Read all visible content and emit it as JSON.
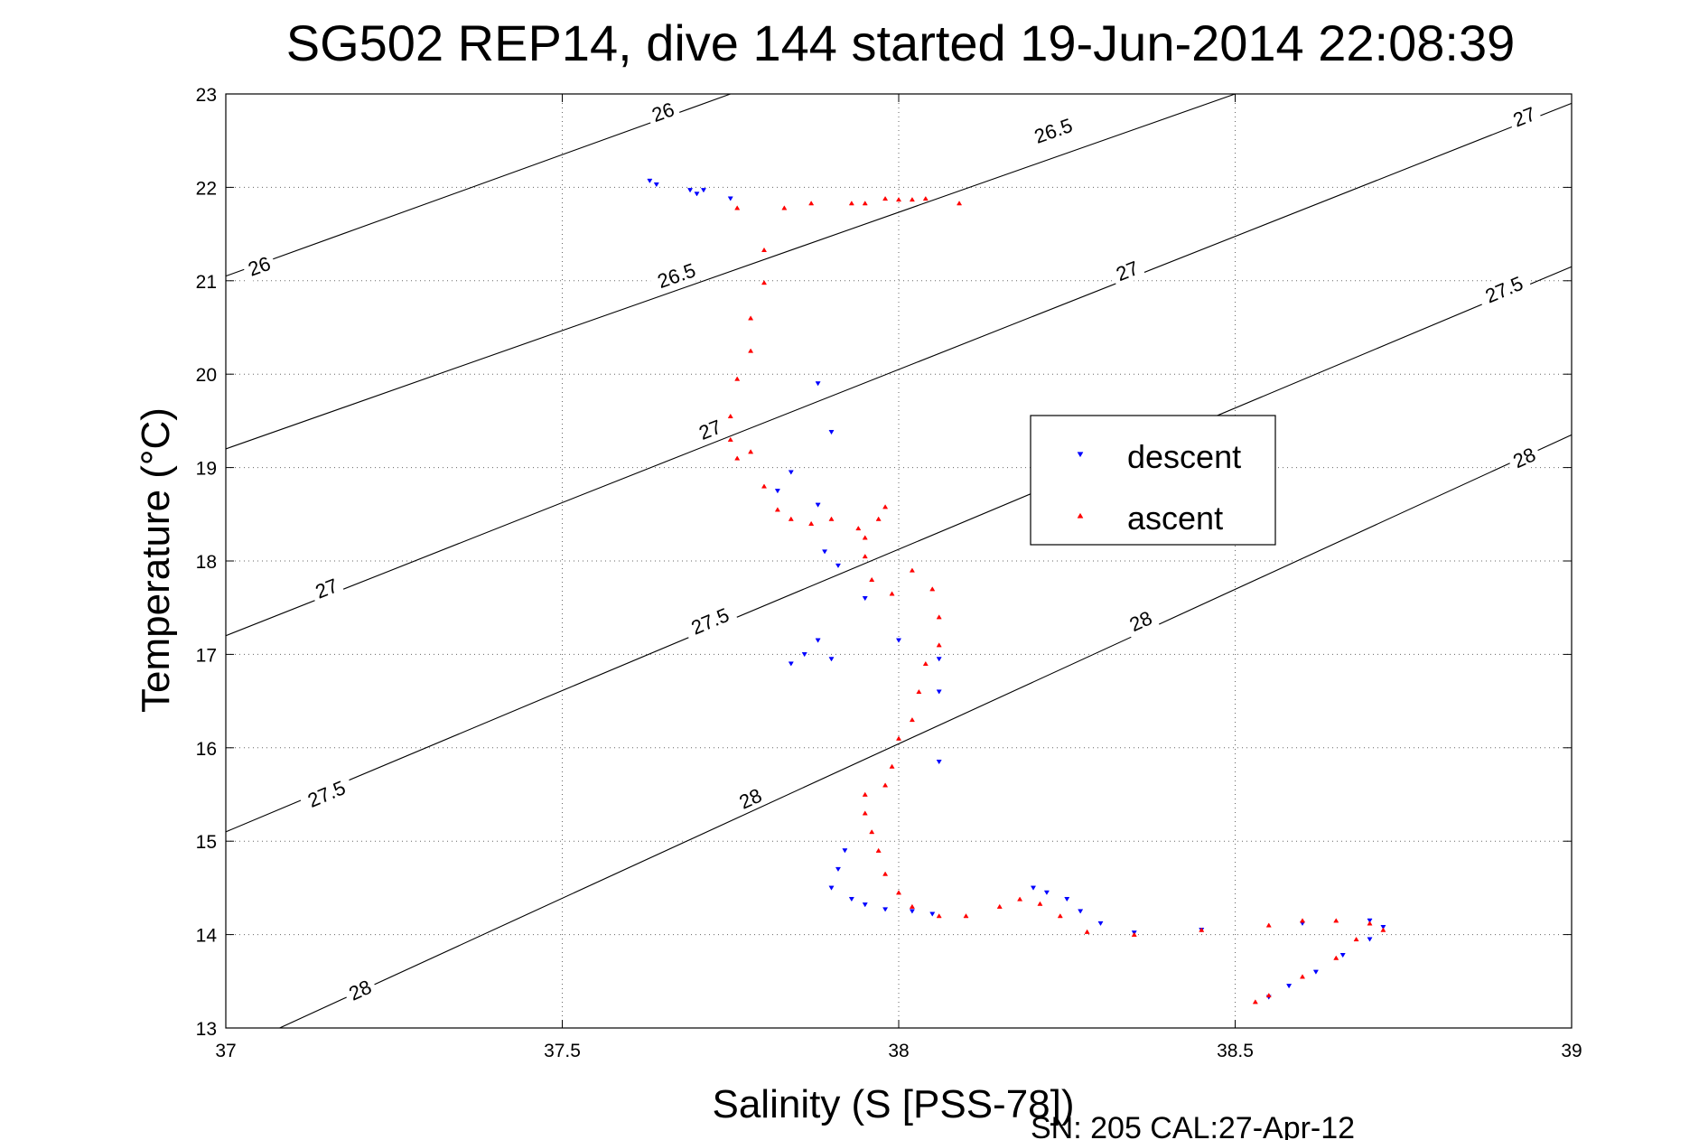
{
  "chart_data": {
    "type": "scatter",
    "title": "SG502 REP14, dive 144 started 19-Jun-2014 22:08:39",
    "xlabel": "Salinity (S [PSS-78])",
    "ylabel": "Temperature (°C)",
    "xlim": [
      37,
      39
    ],
    "ylim": [
      13,
      23
    ],
    "xticks": [
      37,
      37.5,
      38,
      38.5,
      39
    ],
    "xtick_labels": [
      "37",
      "37.5",
      "38",
      "38.5",
      "39"
    ],
    "yticks": [
      13,
      14,
      15,
      16,
      17,
      18,
      19,
      20,
      21,
      22,
      23
    ],
    "ytick_labels": [
      "13",
      "14",
      "15",
      "16",
      "17",
      "18",
      "19",
      "20",
      "21",
      "22",
      "23"
    ],
    "grid": true,
    "legend_position": "center-right",
    "footer": "SN: 205  CAL:27-Apr-12",
    "isopycnals": [
      {
        "label": "26",
        "from": [
          37.0,
          21.05
        ],
        "to": [
          37.75,
          23.0
        ],
        "label_positions": [
          [
            37.05,
            21.15
          ],
          [
            37.65,
            22.8
          ]
        ]
      },
      {
        "label": "26.5",
        "from": [
          37.0,
          19.2
        ],
        "to": [
          38.5,
          23.0
        ],
        "label_positions": [
          [
            37.67,
            21.05
          ],
          [
            38.23,
            22.6
          ]
        ]
      },
      {
        "label": "27",
        "from": [
          37.0,
          17.2
        ],
        "to": [
          39.0,
          22.9
        ],
        "label_positions": [
          [
            37.15,
            17.7
          ],
          [
            37.72,
            19.4
          ],
          [
            38.34,
            21.1
          ],
          [
            38.93,
            22.75
          ]
        ]
      },
      {
        "label": "27.5",
        "from": [
          37.0,
          15.1
        ],
        "to": [
          39.0,
          21.15
        ],
        "label_positions": [
          [
            37.15,
            15.5
          ],
          [
            37.72,
            17.35
          ],
          [
            38.9,
            20.9
          ]
        ]
      },
      {
        "label": "28",
        "from": [
          37.08,
          13.0
        ],
        "to": [
          39.0,
          19.35
        ],
        "label_positions": [
          [
            37.2,
            13.4
          ],
          [
            37.78,
            15.45
          ],
          [
            38.36,
            17.35
          ],
          [
            38.93,
            19.1
          ]
        ]
      }
    ],
    "series": [
      {
        "name": "descent",
        "color": "#0000ff",
        "marker": "triangle-down",
        "points": [
          [
            37.63,
            22.07
          ],
          [
            37.64,
            22.03
          ],
          [
            37.69,
            21.97
          ],
          [
            37.7,
            21.93
          ],
          [
            37.71,
            21.97
          ],
          [
            37.75,
            21.88
          ],
          [
            37.88,
            19.9
          ],
          [
            37.9,
            19.38
          ],
          [
            37.84,
            18.95
          ],
          [
            37.82,
            18.75
          ],
          [
            37.88,
            18.6
          ],
          [
            37.89,
            18.1
          ],
          [
            37.91,
            17.95
          ],
          [
            37.95,
            17.6
          ],
          [
            37.88,
            17.15
          ],
          [
            37.86,
            17.0
          ],
          [
            37.84,
            16.9
          ],
          [
            37.9,
            16.95
          ],
          [
            38.0,
            17.15
          ],
          [
            38.06,
            16.95
          ],
          [
            38.06,
            16.6
          ],
          [
            38.06,
            15.85
          ],
          [
            37.92,
            14.9
          ],
          [
            37.91,
            14.7
          ],
          [
            37.9,
            14.5
          ],
          [
            37.93,
            14.38
          ],
          [
            37.95,
            14.32
          ],
          [
            37.98,
            14.27
          ],
          [
            38.02,
            14.25
          ],
          [
            38.05,
            14.22
          ],
          [
            38.2,
            14.5
          ],
          [
            38.22,
            14.45
          ],
          [
            38.25,
            14.38
          ],
          [
            38.27,
            14.25
          ],
          [
            38.3,
            14.12
          ],
          [
            38.35,
            14.02
          ],
          [
            38.45,
            14.05
          ],
          [
            38.6,
            14.12
          ],
          [
            38.7,
            14.15
          ],
          [
            38.72,
            14.08
          ],
          [
            38.7,
            13.95
          ],
          [
            38.66,
            13.78
          ],
          [
            38.62,
            13.6
          ],
          [
            38.58,
            13.45
          ],
          [
            38.55,
            13.33
          ]
        ]
      },
      {
        "name": "ascent",
        "color": "#ff0000",
        "marker": "triangle-up",
        "points": [
          [
            37.76,
            21.78
          ],
          [
            37.83,
            21.78
          ],
          [
            37.87,
            21.83
          ],
          [
            37.93,
            21.83
          ],
          [
            37.95,
            21.83
          ],
          [
            37.98,
            21.88
          ],
          [
            38.0,
            21.87
          ],
          [
            38.02,
            21.87
          ],
          [
            38.04,
            21.88
          ],
          [
            38.09,
            21.83
          ],
          [
            37.8,
            21.33
          ],
          [
            37.8,
            20.98
          ],
          [
            37.78,
            20.6
          ],
          [
            37.78,
            20.25
          ],
          [
            37.76,
            19.95
          ],
          [
            37.75,
            19.55
          ],
          [
            37.75,
            19.3
          ],
          [
            37.76,
            19.1
          ],
          [
            37.78,
            19.17
          ],
          [
            37.8,
            18.8
          ],
          [
            37.82,
            18.55
          ],
          [
            37.84,
            18.45
          ],
          [
            37.87,
            18.4
          ],
          [
            37.9,
            18.45
          ],
          [
            37.94,
            18.35
          ],
          [
            37.98,
            18.58
          ],
          [
            37.97,
            18.45
          ],
          [
            37.95,
            18.25
          ],
          [
            37.95,
            18.05
          ],
          [
            37.96,
            17.8
          ],
          [
            37.99,
            17.65
          ],
          [
            38.02,
            17.9
          ],
          [
            38.05,
            17.7
          ],
          [
            38.06,
            17.4
          ],
          [
            38.06,
            17.1
          ],
          [
            38.04,
            16.9
          ],
          [
            38.03,
            16.6
          ],
          [
            38.02,
            16.3
          ],
          [
            38.0,
            16.1
          ],
          [
            37.99,
            15.8
          ],
          [
            37.98,
            15.6
          ],
          [
            37.95,
            15.5
          ],
          [
            37.95,
            15.3
          ],
          [
            37.96,
            15.1
          ],
          [
            37.97,
            14.9
          ],
          [
            37.98,
            14.65
          ],
          [
            38.0,
            14.45
          ],
          [
            38.02,
            14.3
          ],
          [
            38.06,
            14.2
          ],
          [
            38.1,
            14.2
          ],
          [
            38.15,
            14.3
          ],
          [
            38.18,
            14.38
          ],
          [
            38.21,
            14.33
          ],
          [
            38.24,
            14.2
          ],
          [
            38.28,
            14.03
          ],
          [
            38.35,
            14.0
          ],
          [
            38.45,
            14.05
          ],
          [
            38.55,
            14.1
          ],
          [
            38.6,
            14.15
          ],
          [
            38.65,
            14.15
          ],
          [
            38.7,
            14.12
          ],
          [
            38.72,
            14.05
          ],
          [
            38.68,
            13.95
          ],
          [
            38.65,
            13.75
          ],
          [
            38.6,
            13.55
          ],
          [
            38.55,
            13.35
          ],
          [
            38.53,
            13.28
          ]
        ]
      }
    ]
  }
}
